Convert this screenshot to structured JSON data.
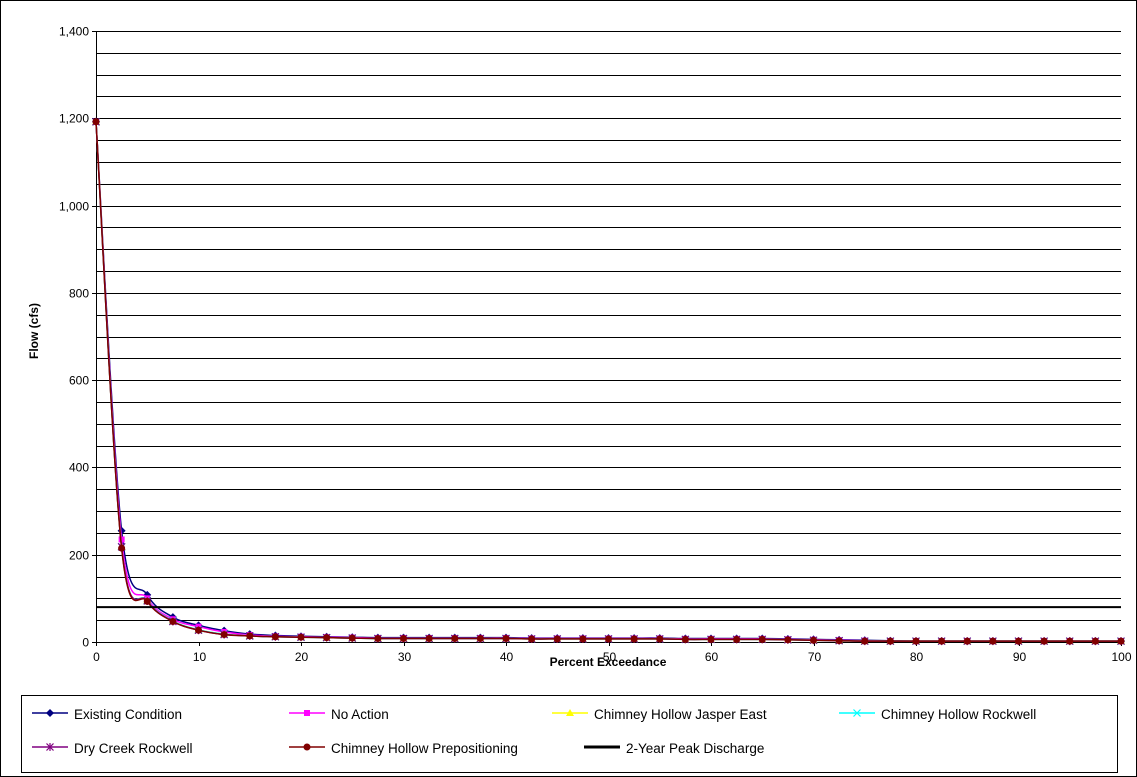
{
  "chart_data": {
    "type": "line",
    "title": "",
    "xlabel": "Percent Exceedance",
    "ylabel": "Flow (cfs)",
    "xlim": [
      0,
      100
    ],
    "ylim": [
      0,
      1400
    ],
    "x_ticks": [
      0,
      10,
      20,
      30,
      40,
      50,
      60,
      70,
      80,
      90,
      100
    ],
    "y_ticks": [
      0,
      200,
      400,
      600,
      800,
      1000,
      1200,
      1400
    ],
    "y_tick_labels": [
      "0",
      "200",
      "400",
      "600",
      "800",
      "1,000",
      "1,200",
      "1,400"
    ],
    "minor_grid_step": 50,
    "grid": true,
    "legend_position": "bottom",
    "x": [
      0,
      2.5,
      5,
      7.5,
      10,
      12.5,
      15,
      17.5,
      20,
      22.5,
      25,
      27.5,
      30,
      32.5,
      35,
      37.5,
      40,
      42.5,
      45,
      47.5,
      50,
      52.5,
      55,
      57.5,
      60,
      62.5,
      65,
      67.5,
      70,
      72.5,
      75,
      77.5,
      80,
      82.5,
      85,
      87.5,
      90,
      92.5,
      95,
      97.5,
      100
    ],
    "series": [
      {
        "name": "Existing Condition",
        "color": "#000080",
        "marker": "diamond",
        "values": [
          1192,
          255,
          108,
          57,
          38,
          26,
          18,
          15,
          13,
          12,
          11,
          10,
          10,
          10,
          10,
          10,
          10,
          9,
          9,
          9,
          9,
          9,
          9,
          8,
          8,
          8,
          8,
          7,
          6,
          5,
          4,
          3,
          2,
          2,
          2,
          2,
          2,
          2,
          2,
          2,
          2
        ]
      },
      {
        "name": "No Action",
        "color": "#ff00ff",
        "marker": "square",
        "values": [
          1192,
          235,
          100,
          52,
          35,
          23,
          16,
          13,
          12,
          11,
          10,
          9,
          9,
          9,
          9,
          9,
          9,
          8,
          8,
          8,
          8,
          8,
          8,
          7,
          7,
          7,
          7,
          6,
          5,
          4,
          3,
          2,
          2,
          2,
          2,
          2,
          2,
          2,
          2,
          2,
          2
        ]
      },
      {
        "name": "Chimney Hollow Jasper East",
        "color": "#ffff00",
        "marker": "triangle",
        "values": [
          1192,
          218,
          95,
          48,
          28,
          18,
          14,
          12,
          11,
          10,
          9,
          8,
          8,
          8,
          8,
          8,
          8,
          7,
          7,
          7,
          7,
          7,
          7,
          6,
          6,
          6,
          6,
          5,
          4,
          3,
          2,
          2,
          2,
          2,
          2,
          2,
          2,
          2,
          2,
          2,
          2
        ]
      },
      {
        "name": "Chimney Hollow Rockwell",
        "color": "#00ffff",
        "marker": "x",
        "values": [
          1192,
          218,
          95,
          48,
          28,
          18,
          14,
          12,
          11,
          10,
          9,
          8,
          8,
          8,
          8,
          8,
          8,
          7,
          7,
          7,
          7,
          7,
          7,
          6,
          6,
          6,
          6,
          5,
          4,
          3,
          2,
          2,
          2,
          2,
          2,
          2,
          2,
          2,
          2,
          2,
          2
        ]
      },
      {
        "name": "Dry Creek Rockwell",
        "color": "#800080",
        "marker": "star",
        "values": [
          1192,
          218,
          94,
          47,
          27,
          17,
          14,
          12,
          11,
          10,
          9,
          8,
          8,
          8,
          8,
          8,
          8,
          7,
          7,
          7,
          7,
          7,
          7,
          6,
          6,
          6,
          6,
          5,
          4,
          3,
          2,
          2,
          2,
          2,
          2,
          2,
          2,
          2,
          2,
          2,
          2
        ]
      },
      {
        "name": "Chimney Hollow Prepositioning",
        "color": "#800000",
        "marker": "circle",
        "values": [
          1192,
          215,
          93,
          47,
          27,
          17,
          14,
          12,
          11,
          10,
          9,
          8,
          8,
          8,
          8,
          8,
          8,
          7,
          7,
          7,
          7,
          7,
          7,
          6,
          6,
          6,
          6,
          5,
          4,
          3,
          2,
          2,
          2,
          2,
          2,
          2,
          2,
          2,
          2,
          2,
          2
        ]
      },
      {
        "name": "2-Year Peak Discharge",
        "color": "#000000",
        "marker": "none",
        "constant": 80
      }
    ]
  }
}
